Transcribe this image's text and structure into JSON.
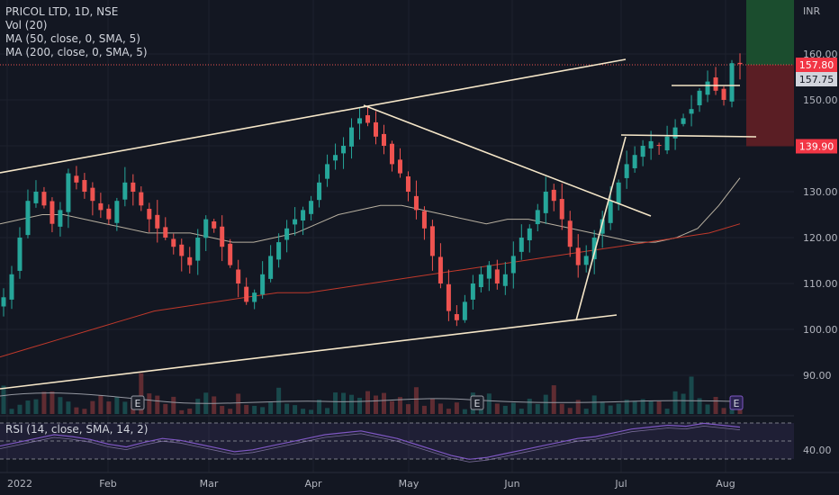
{
  "legend": {
    "symbol": "PRICOL LTD, 1D, NSE",
    "volume": "Vol (20)",
    "ma50": "MA (50, close, 0, SMA, 5)",
    "ma200": "MA (200, close, 0, SMA, 5)",
    "rsi": "RSI (14, close, SMA, 14, 2)"
  },
  "price_axis": {
    "currency": "INR",
    "ticks": [
      "160.00",
      "150.00",
      "140.00",
      "130.00",
      "120.00",
      "110.00",
      "100.00",
      "90.00"
    ],
    "rsi_tick": "40.00"
  },
  "price_tags": {
    "last": "157.80",
    "ma": "157.75",
    "stop": "139.90"
  },
  "time_axis": {
    "labels": [
      "2022",
      "Feb",
      "Mar",
      "Apr",
      "May",
      "Jun",
      "Jul",
      "Aug"
    ]
  },
  "events": [
    "E",
    "E",
    "E"
  ],
  "colors": {
    "background": "#131722",
    "up": "#26a69a",
    "down": "#ef5350",
    "trendline": "#f5e6c8",
    "ma50": "#b8b0a0",
    "ma200": "#c0392b",
    "rsi": "#7e57c2",
    "profit_zone": "#1b4d2e",
    "loss_zone": "#5a1e24"
  },
  "chart_data": {
    "type": "candlestick",
    "interval": "1D",
    "exchange": "NSE",
    "ylim": [
      84,
      168
    ],
    "closes_approx": [
      107,
      112,
      120,
      128,
      130,
      127,
      123,
      126,
      134,
      132,
      130,
      128,
      126,
      124,
      128,
      132,
      130,
      127,
      124,
      122,
      120,
      118,
      116,
      114,
      120,
      124,
      122,
      118,
      114,
      110,
      106,
      108,
      112,
      116,
      119,
      122,
      124,
      126,
      128,
      132,
      136,
      138,
      140,
      144,
      146,
      145,
      142,
      140,
      136,
      134,
      130,
      126,
      122,
      116,
      110,
      104,
      102,
      106,
      110,
      112,
      114,
      110,
      112,
      116,
      120,
      122,
      126,
      130,
      128,
      124,
      118,
      114,
      116,
      120,
      124,
      128,
      132,
      136,
      138,
      140,
      141,
      140,
      142,
      144,
      146,
      148,
      152,
      154,
      152,
      150,
      158,
      157.8
    ],
    "ma50_approx": [
      123,
      124,
      125,
      125,
      124,
      123,
      122,
      121,
      121,
      121,
      120,
      119,
      119,
      120,
      121,
      123,
      125,
      126,
      127,
      127,
      126,
      125,
      124,
      123,
      124,
      124,
      123,
      122,
      121,
      120,
      119,
      119,
      120,
      122,
      127,
      133
    ],
    "ma200_approx": [
      94,
      96,
      98,
      100,
      102,
      104,
      105,
      106,
      107,
      108,
      108,
      109,
      110,
      111,
      112,
      113,
      114,
      115,
      116,
      117,
      118,
      119,
      120,
      121,
      123
    ],
    "rsi_approx": [
      48,
      52,
      56,
      60,
      58,
      55,
      50,
      47,
      52,
      56,
      54,
      50,
      46,
      42,
      44,
      48,
      52,
      56,
      60,
      62,
      64,
      60,
      56,
      50,
      44,
      38,
      34,
      36,
      40,
      44,
      48,
      52,
      56,
      58,
      62,
      66,
      68,
      70,
      69,
      72,
      70,
      68
    ],
    "rsi_ylim": [
      20,
      80
    ]
  }
}
